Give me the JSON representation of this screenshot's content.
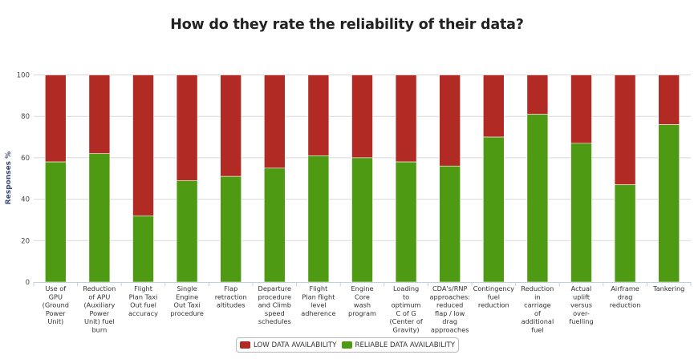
{
  "chart_data": {
    "type": "bar",
    "stacked": true,
    "percent": true,
    "title": "How do they rate the reliability of their data?",
    "xlabel": "",
    "ylabel": "Responses %",
    "ylim": [
      0,
      100
    ],
    "yticks": [
      0,
      20,
      40,
      60,
      80,
      100
    ],
    "grid": true,
    "legend_position": "bottom-center",
    "categories": [
      [
        "Use of",
        "GPU",
        "(Ground",
        "Power",
        "Unit)"
      ],
      [
        "Reduction",
        "of APU",
        "(Auxiliary",
        "Power",
        "Unit) fuel",
        "burn"
      ],
      [
        "Flight",
        "Plan Taxi",
        "Out fuel",
        "accuracy"
      ],
      [
        "Single",
        "Engine",
        "Out Taxi",
        "procedure"
      ],
      [
        "Flap",
        "retraction",
        "altitudes"
      ],
      [
        "Departure",
        "procedure",
        "and Climb",
        "speed",
        "schedules"
      ],
      [
        "Flight",
        "Plan flight",
        "level",
        "adherence"
      ],
      [
        "Engine",
        "Core",
        "wash",
        "program"
      ],
      [
        "Loading",
        "to",
        "optimum",
        "C of G",
        "(Center of",
        "Gravity)"
      ],
      [
        "CDA's/RNP",
        "approaches:",
        "reduced",
        "flap / low",
        "drag",
        "approaches"
      ],
      [
        "Contingency",
        "fuel",
        "reduction"
      ],
      [
        "Reduction",
        "in",
        "carriage",
        "of",
        "additional",
        "fuel"
      ],
      [
        "Actual",
        "uplift",
        "versus",
        "over-",
        "fuelling"
      ],
      [
        "Airframe",
        "drag",
        "reduction"
      ],
      [
        "Tankering"
      ]
    ],
    "series": [
      {
        "name": "RELIABLE DATA AVAILABILITY",
        "color": "#4e9a12",
        "values": [
          58,
          62,
          32,
          49,
          51,
          55,
          61,
          60,
          58,
          56,
          70,
          81,
          67,
          47,
          76
        ]
      },
      {
        "name": "LOW DATA AVAILABILITY",
        "color": "#b22a24",
        "values": [
          42,
          38,
          68,
          51,
          49,
          45,
          39,
          40,
          42,
          44,
          30,
          19,
          33,
          53,
          24
        ]
      }
    ]
  },
  "legend": {
    "items": [
      {
        "label": "LOW DATA AVAILABILITY",
        "color": "#b22a24"
      },
      {
        "label": "RELIABLE DATA AVAILABILITY",
        "color": "#4e9a12"
      }
    ]
  }
}
